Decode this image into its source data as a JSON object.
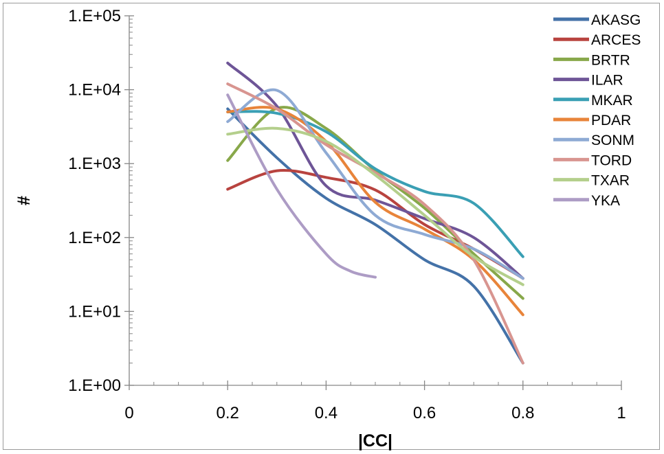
{
  "chart_data": {
    "type": "line",
    "xlabel": "|CC|",
    "ylabel": "#",
    "xlim": [
      0,
      1
    ],
    "ylim": [
      1,
      100000
    ],
    "y_scale": "log",
    "x_ticks": [
      "0",
      "0.2",
      "0.4",
      "0.6",
      "0.8",
      "1"
    ],
    "x_tick_values": [
      0,
      0.2,
      0.4,
      0.6,
      0.8,
      1
    ],
    "y_ticks": [
      "1.E+00",
      "1.E+01",
      "1.E+02",
      "1.E+03",
      "1.E+04",
      "1.E+05"
    ],
    "y_tick_values": [
      1,
      10,
      100,
      1000,
      10000,
      100000
    ],
    "grid": false,
    "legend_position": "right",
    "series": [
      {
        "name": "AKASG",
        "color": "#4472a8",
        "x": [
          0.2,
          0.3,
          0.4,
          0.5,
          0.6,
          0.7,
          0.8
        ],
        "y": [
          5500,
          1200,
          340,
          150,
          50,
          22,
          2
        ]
      },
      {
        "name": "ARCES",
        "color": "#b8433f",
        "x": [
          0.2,
          0.3,
          0.4,
          0.5,
          0.6,
          0.7,
          0.8
        ],
        "y": [
          450,
          800,
          650,
          440,
          150,
          70,
          28
        ]
      },
      {
        "name": "BRTR",
        "color": "#88a84a",
        "x": [
          0.2,
          0.3,
          0.4,
          0.5,
          0.6,
          0.7,
          0.8
        ],
        "y": [
          1100,
          5600,
          3000,
          800,
          250,
          60,
          15
        ]
      },
      {
        "name": "ILAR",
        "color": "#6e5597",
        "x": [
          0.2,
          0.3,
          0.4,
          0.5,
          0.6,
          0.7,
          0.8
        ],
        "y": [
          23000,
          6000,
          500,
          320,
          180,
          100,
          28
        ]
      },
      {
        "name": "MKAR",
        "color": "#3a9fb4",
        "x": [
          0.2,
          0.3,
          0.4,
          0.5,
          0.6,
          0.7,
          0.8
        ],
        "y": [
          5000,
          4800,
          2700,
          850,
          420,
          290,
          55
        ]
      },
      {
        "name": "PDAR",
        "color": "#e8843a",
        "x": [
          0.2,
          0.3,
          0.4,
          0.5,
          0.6,
          0.7,
          0.8
        ],
        "y": [
          5000,
          5500,
          2000,
          300,
          130,
          50,
          9
        ]
      },
      {
        "name": "SONM",
        "color": "#8eaad4",
        "x": [
          0.2,
          0.3,
          0.4,
          0.5,
          0.6,
          0.7,
          0.8
        ],
        "y": [
          3700,
          9800,
          1400,
          200,
          110,
          70,
          28
        ]
      },
      {
        "name": "TORD",
        "color": "#d89590",
        "x": [
          0.2,
          0.3,
          0.4,
          0.5,
          0.6,
          0.7,
          0.8
        ],
        "y": [
          12000,
          5500,
          1800,
          750,
          280,
          50,
          2
        ]
      },
      {
        "name": "TXAR",
        "color": "#b4cf8c",
        "x": [
          0.2,
          0.3,
          0.4,
          0.5,
          0.6,
          0.7,
          0.8
        ],
        "y": [
          2500,
          3000,
          2000,
          700,
          200,
          55,
          23
        ]
      },
      {
        "name": "YKA",
        "color": "#ad9cc5",
        "x": [
          0.2,
          0.3,
          0.4,
          0.45,
          0.5
        ],
        "y": [
          8500,
          450,
          60,
          35,
          29
        ]
      }
    ]
  }
}
